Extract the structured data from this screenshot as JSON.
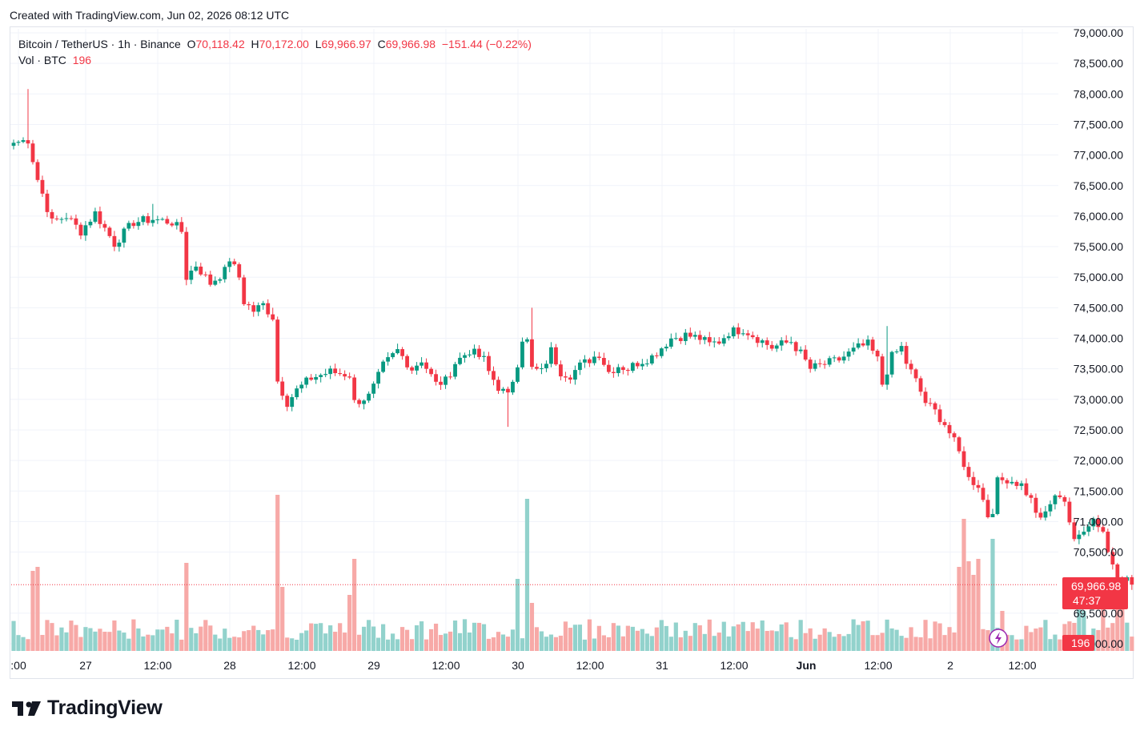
{
  "header": {
    "created_text": "Created with TradingView.com, Jun 02, 2026 08:12 UTC"
  },
  "legend": {
    "symbol": "Bitcoin / TetherUS · 1h · Binance",
    "o_label": "O",
    "o_value": "70,118.42",
    "h_label": "H",
    "h_value": "70,172.00",
    "l_label": "L",
    "l_value": "69,966.97",
    "c_label": "C",
    "c_value": "69,966.98",
    "change": "−151.44 (−0.22%)",
    "vol_label": "Vol · BTC",
    "vol_value": "196"
  },
  "footer": {
    "brand": "TradingView"
  },
  "colors": {
    "up": "#089981",
    "down": "#f23645",
    "vol_up": "#92d2cc",
    "vol_down": "#f7a9a7",
    "grid": "#f0f3fa"
  },
  "chart_data": {
    "type": "candlestick",
    "title": "Bitcoin / TetherUS · 1h · Binance",
    "ylim": [
      69200,
      79000
    ],
    "y_ticks": [
      "79,000.00",
      "78,500.00",
      "78,000.00",
      "77,500.00",
      "77,000.00",
      "76,500.00",
      "76,000.00",
      "75,500.00",
      "75,000.00",
      "74,500.00",
      "74,000.00",
      "73,500.00",
      "73,000.00",
      "72,500.00",
      "72,000.00",
      "71,500.00",
      "71,000.00",
      "70,500.00",
      "69,500.00",
      "69,000.00"
    ],
    "x_ticks": [
      ":00",
      "27",
      "12:00",
      "28",
      "12:00",
      "29",
      "12:00",
      "30",
      "12:00",
      "31",
      "12:00",
      "Jun",
      "12:00",
      "2",
      "12:00"
    ],
    "last_price": "69,966.98",
    "countdown": "47:37",
    "volume_tag": "196",
    "anchors": [
      [
        0,
        77200
      ],
      [
        3,
        77250
      ],
      [
        5,
        76600
      ],
      [
        8,
        75900
      ],
      [
        11,
        76000
      ],
      [
        14,
        75750
      ],
      [
        17,
        76050
      ],
      [
        21,
        75550
      ],
      [
        25,
        75900
      ],
      [
        29,
        75950
      ],
      [
        33,
        75900
      ],
      [
        35,
        75750
      ],
      [
        36,
        75000
      ],
      [
        38,
        75200
      ],
      [
        41,
        74900
      ],
      [
        44,
        75100
      ],
      [
        45,
        75300
      ],
      [
        47,
        75000
      ],
      [
        48,
        74600
      ],
      [
        50,
        74450
      ],
      [
        52,
        74550
      ],
      [
        54,
        74350
      ],
      [
        55,
        73300
      ],
      [
        57,
        72950
      ],
      [
        59,
        73150
      ],
      [
        62,
        73350
      ],
      [
        66,
        73450
      ],
      [
        70,
        73400
      ],
      [
        71,
        72950
      ],
      [
        74,
        73050
      ],
      [
        75,
        73200
      ],
      [
        77,
        73550
      ],
      [
        80,
        73800
      ],
      [
        83,
        73500
      ],
      [
        85,
        73650
      ],
      [
        88,
        73250
      ],
      [
        90,
        73300
      ],
      [
        92,
        73600
      ],
      [
        95,
        73800
      ],
      [
        98,
        73650
      ],
      [
        99,
        73450
      ],
      [
        101,
        73200
      ],
      [
        103,
        73050
      ],
      [
        105,
        73600
      ],
      [
        106,
        74000
      ],
      [
        107,
        73950
      ],
      [
        108,
        73500
      ],
      [
        110,
        73450
      ],
      [
        112,
        73800
      ],
      [
        114,
        73450
      ],
      [
        116,
        73400
      ],
      [
        118,
        73550
      ],
      [
        120,
        73650
      ],
      [
        122,
        73750
      ],
      [
        124,
        73450
      ],
      [
        126,
        73550
      ],
      [
        128,
        73500
      ],
      [
        130,
        73600
      ],
      [
        133,
        73700
      ],
      [
        135,
        73850
      ],
      [
        137,
        74000
      ],
      [
        140,
        74050
      ],
      [
        143,
        74000
      ],
      [
        145,
        73900
      ],
      [
        147,
        73950
      ],
      [
        149,
        74100
      ],
      [
        152,
        74150
      ],
      [
        154,
        74050
      ],
      [
        156,
        73950
      ],
      [
        158,
        73850
      ],
      [
        160,
        73900
      ],
      [
        162,
        73950
      ],
      [
        164,
        73750
      ],
      [
        166,
        73500
      ],
      [
        168,
        73550
      ],
      [
        170,
        73600
      ],
      [
        172,
        73650
      ],
      [
        174,
        73750
      ],
      [
        176,
        73850
      ],
      [
        178,
        73900
      ],
      [
        180,
        73650
      ],
      [
        181,
        73250
      ],
      [
        183,
        73700
      ],
      [
        185,
        73850
      ],
      [
        186,
        73600
      ],
      [
        188,
        73300
      ],
      [
        190,
        72950
      ],
      [
        192,
        72800
      ],
      [
        194,
        72600
      ],
      [
        196,
        72300
      ],
      [
        198,
        71950
      ],
      [
        199,
        71700
      ],
      [
        201,
        71600
      ],
      [
        203,
        71100
      ],
      [
        204,
        71200
      ],
      [
        205,
        71650
      ],
      [
        207,
        71700
      ],
      [
        210,
        71600
      ],
      [
        212,
        71350
      ],
      [
        214,
        71000
      ],
      [
        216,
        71300
      ],
      [
        218,
        71450
      ],
      [
        219,
        71350
      ],
      [
        221,
        70650
      ],
      [
        223,
        70900
      ],
      [
        225,
        71050
      ],
      [
        227,
        70850
      ],
      [
        228,
        70500
      ],
      [
        230,
        70150
      ],
      [
        232,
        70050
      ],
      [
        233,
        69966
      ]
    ],
    "volume_highlights": [
      [
        4,
        100
      ],
      [
        5,
        105
      ],
      [
        36,
        110
      ],
      [
        55,
        195
      ],
      [
        56,
        80
      ],
      [
        70,
        70
      ],
      [
        71,
        115
      ],
      [
        105,
        90
      ],
      [
        107,
        190
      ],
      [
        108,
        60
      ],
      [
        197,
        105
      ],
      [
        198,
        165
      ],
      [
        199,
        112
      ],
      [
        200,
        95
      ],
      [
        201,
        115
      ],
      [
        204,
        140
      ],
      [
        206,
        50
      ],
      [
        222,
        55
      ],
      [
        223,
        50
      ],
      [
        227,
        55
      ],
      [
        230,
        75
      ],
      [
        231,
        70
      ]
    ],
    "spikes": [
      [
        3,
        78080
      ],
      [
        29,
        76200
      ],
      [
        54,
        74500
      ],
      [
        103,
        72550
      ],
      [
        108,
        74500
      ],
      [
        182,
        74200
      ],
      [
        204,
        71100
      ]
    ]
  }
}
